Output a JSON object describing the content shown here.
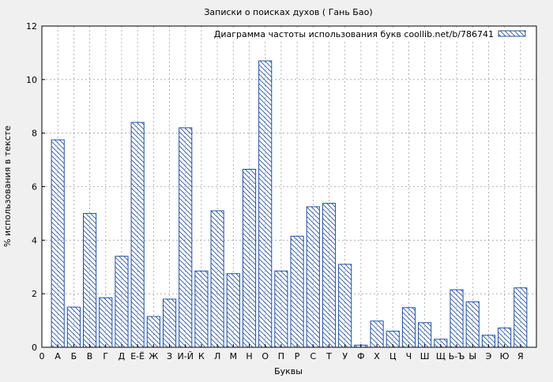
{
  "chart_data": {
    "type": "bar",
    "title": "Записки о поисках духов ( Гань Бао)",
    "xlabel": "Буквы",
    "ylabel": "% использования в тексте",
    "ylim": [
      0,
      12
    ],
    "yticks": [
      0,
      2,
      4,
      6,
      8,
      10,
      12
    ],
    "grid": true,
    "legend_position": "top-right",
    "series": [
      {
        "name": "Диаграмма частоты использования букв coollib.net/b/786741",
        "color": "#1f4fa8",
        "fill": "hatched",
        "values": [
          7.75,
          1.5,
          5.0,
          1.85,
          3.4,
          8.4,
          1.15,
          1.8,
          8.2,
          2.85,
          5.1,
          2.75,
          6.65,
          10.7,
          2.85,
          4.15,
          5.25,
          5.38,
          3.1,
          0.08,
          0.98,
          0.6,
          1.48,
          0.92,
          0.3,
          2.15,
          1.7,
          0.45,
          0.72,
          2.22
        ]
      }
    ],
    "categories": [
      "А",
      "Б",
      "В",
      "Г",
      "Д",
      "Е-Ё",
      "Ж",
      "З",
      "И-Й",
      "К",
      "Л",
      "М",
      "Н",
      "О",
      "П",
      "Р",
      "С",
      "Т",
      "У",
      "Ф",
      "Х",
      "Ц",
      "Ч",
      "Ш",
      "Щ",
      "Ь-Ъ",
      "Ы",
      "Э",
      "Ю",
      "Я"
    ],
    "x_tick_labels": [
      "0",
      "А",
      "Б",
      "В",
      "Г",
      "Д",
      "Е-Ё",
      "Ж",
      "З",
      "И-Й",
      "К",
      "Л",
      "М",
      "Н",
      "О",
      "П",
      "Р",
      "С",
      "Т",
      "У",
      "Ф",
      "Х",
      "Ц",
      "Ч",
      "Ш",
      "Щ",
      "Ь-Ъ",
      "Ы",
      "Э",
      "Ю",
      "Я"
    ]
  }
}
